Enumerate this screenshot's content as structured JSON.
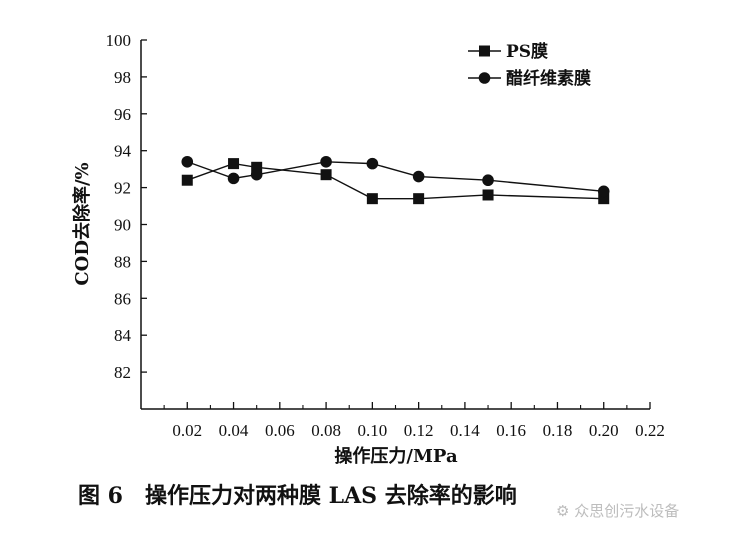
{
  "chart_data": {
    "type": "line",
    "xlabel": "操作压力/MPa",
    "ylabel": "COD去除率/%",
    "xlim": [
      0,
      0.22
    ],
    "ylim": [
      80,
      100
    ],
    "xticks": [
      "0.02",
      "0.04",
      "0.06",
      "0.08",
      "0.10",
      "0.12",
      "0.14",
      "0.16",
      "0.18",
      "0.20",
      "0.22"
    ],
    "yticks": [
      "82",
      "84",
      "86",
      "88",
      "90",
      "92",
      "94",
      "96",
      "98",
      "100"
    ],
    "legend_position": "top-right",
    "series": [
      {
        "name": "PS膜",
        "marker": "square",
        "x": [
          0.02,
          0.04,
          0.05,
          0.08,
          0.1,
          0.12,
          0.15,
          0.2
        ],
        "y": [
          92.4,
          93.3,
          93.1,
          92.7,
          91.4,
          91.4,
          91.6,
          91.4
        ]
      },
      {
        "name": "醋纤维素膜",
        "marker": "circle",
        "x": [
          0.02,
          0.04,
          0.05,
          0.08,
          0.1,
          0.12,
          0.15,
          0.2
        ],
        "y": [
          93.4,
          92.5,
          92.7,
          93.4,
          93.3,
          92.6,
          92.4,
          91.8
        ]
      }
    ]
  },
  "caption": "图 6　操作压力对两种膜 LAS 去除率的影响",
  "watermark": "众思创污水设备",
  "colors": {
    "ink": "#111111"
  }
}
